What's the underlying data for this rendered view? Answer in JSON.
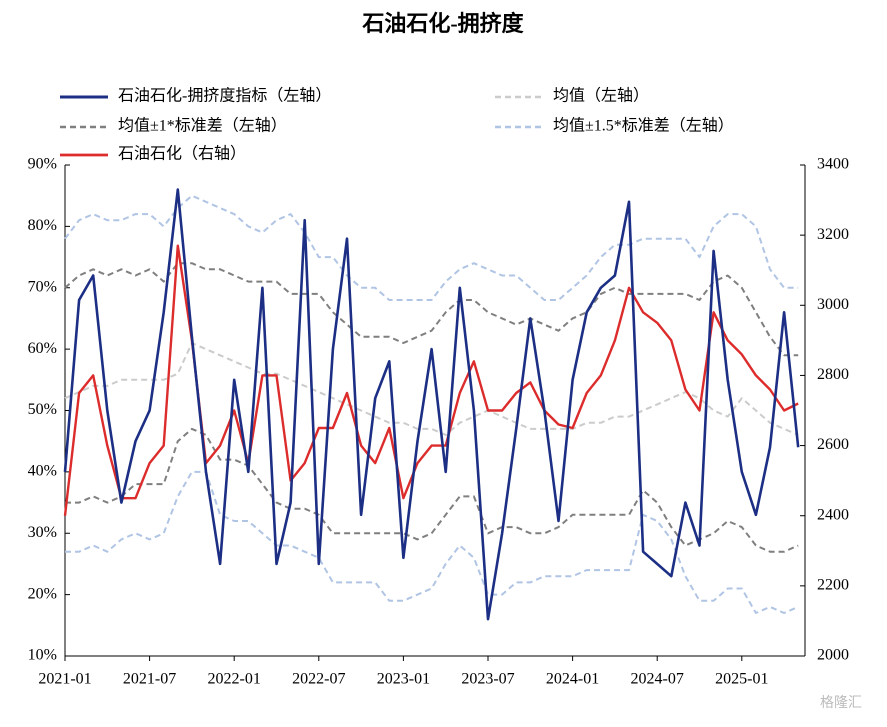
{
  "chart_data": {
    "type": "line",
    "title": "石油石化-拥挤度",
    "watermark": "格隆汇",
    "categories": [
      "2021-01",
      null,
      null,
      null,
      null,
      null,
      "2021-07",
      null,
      null,
      null,
      null,
      null,
      "2022-01",
      null,
      null,
      null,
      null,
      null,
      "2022-07",
      null,
      null,
      null,
      null,
      null,
      "2023-01",
      null,
      null,
      null,
      null,
      null,
      "2023-07",
      null,
      null,
      null,
      null,
      null,
      "2024-01",
      null,
      null,
      null,
      null,
      null,
      "2024-07",
      null,
      null,
      null,
      null,
      null,
      "2025-01",
      null,
      null,
      null,
      null
    ],
    "ylim": [
      10,
      90
    ],
    "yticks": [
      {
        "value": 10,
        "label": "10%"
      },
      {
        "value": 20,
        "label": "20%"
      },
      {
        "value": 30,
        "label": "30%"
      },
      {
        "value": 40,
        "label": "40%"
      },
      {
        "value": 50,
        "label": "50%"
      },
      {
        "value": 60,
        "label": "60%"
      },
      {
        "value": 70,
        "label": "70%"
      },
      {
        "value": 80,
        "label": "80%"
      },
      {
        "value": 90,
        "label": "90%"
      }
    ],
    "y2lim": [
      2000,
      3400
    ],
    "y2ticks": [
      2000,
      2200,
      2400,
      2600,
      2800,
      3000,
      3200,
      3400
    ],
    "series": [
      {
        "name": "石油石化-拥挤度指标（左轴）",
        "color": "#1c2f85",
        "width": 2.6,
        "values": [
          40,
          68,
          72,
          50,
          35,
          45,
          50,
          66,
          86,
          62,
          40,
          25,
          55,
          40,
          70,
          25,
          35,
          81,
          25,
          60,
          78,
          33,
          52,
          58,
          26,
          45,
          60,
          40,
          70,
          50,
          16,
          30,
          47,
          65,
          50,
          32,
          55,
          66,
          70,
          72,
          84,
          27,
          25,
          23,
          35,
          28,
          76,
          55,
          40,
          33,
          44,
          66,
          44
        ]
      },
      {
        "name": "均值（左轴）",
        "color": "#cbcbcb",
        "dash": "6 4",
        "width": 2,
        "values": [
          52,
          53,
          54,
          54,
          55,
          55,
          55,
          55,
          56,
          61,
          60,
          59,
          58,
          57,
          56,
          56,
          55,
          54,
          53,
          52,
          51,
          50,
          49,
          48,
          48,
          47,
          47,
          46,
          48,
          49,
          50,
          49,
          48,
          47,
          47,
          47,
          47,
          48,
          48,
          49,
          49,
          50,
          51,
          52,
          53,
          52,
          50,
          49,
          52,
          50,
          48,
          47,
          46
        ]
      },
      {
        "name": "均值±1*标准差（左轴）",
        "color": "#7f7f7f",
        "dash": "6 4",
        "width": 2,
        "upper": [
          70,
          72,
          73,
          72,
          73,
          72,
          73,
          71,
          74,
          74,
          73,
          73,
          72,
          71,
          71,
          71,
          69,
          69,
          69,
          66,
          64,
          62,
          62,
          62,
          61,
          62,
          63,
          66,
          68,
          68,
          66,
          65,
          64,
          65,
          64,
          63,
          65,
          66,
          69,
          70,
          69,
          69,
          69,
          69,
          69,
          68,
          71,
          72,
          70,
          66,
          62,
          59,
          59
        ],
        "lower": [
          35,
          35,
          36,
          35,
          36,
          38,
          38,
          38,
          45,
          47,
          46,
          42,
          42,
          41,
          38,
          35,
          34,
          34,
          33,
          30,
          30,
          30,
          30,
          30,
          30,
          29,
          30,
          33,
          36,
          36,
          30,
          31,
          31,
          30,
          30,
          31,
          33,
          33,
          33,
          33,
          33,
          37,
          35,
          31,
          28,
          29,
          30,
          32,
          31,
          28,
          27,
          27,
          28
        ]
      },
      {
        "name": "均值±1.5*标准差（左轴）",
        "color": "#b0c4e4",
        "dash": "6 4",
        "width": 2,
        "upper": [
          78,
          81,
          82,
          81,
          81,
          82,
          82,
          80,
          83,
          85,
          84,
          83,
          82,
          80,
          79,
          81,
          82,
          79,
          75,
          75,
          72,
          70,
          70,
          68,
          68,
          68,
          68,
          71,
          73,
          74,
          73,
          72,
          72,
          70,
          68,
          68,
          70,
          72,
          75,
          77,
          77,
          78,
          78,
          78,
          78,
          75,
          80,
          82,
          82,
          80,
          73,
          70,
          70
        ],
        "lower": [
          27,
          27,
          28,
          27,
          29,
          30,
          29,
          30,
          36,
          40,
          40,
          33,
          32,
          32,
          30,
          28,
          28,
          27,
          26,
          22,
          22,
          22,
          22,
          19,
          19,
          20,
          21,
          25,
          28,
          26,
          20,
          20,
          22,
          22,
          23,
          23,
          23,
          24,
          24,
          24,
          24,
          33,
          32,
          29,
          23,
          19,
          19,
          21,
          21,
          17,
          18,
          17,
          18
        ]
      },
      {
        "name": "石油石化（右轴）",
        "color": "#dc2c2c",
        "width": 2.4,
        "axis": "y2",
        "values": [
          2400,
          2750,
          2800,
          2600,
          2450,
          2450,
          2550,
          2600,
          3170,
          2900,
          2550,
          2600,
          2700,
          2550,
          2800,
          2800,
          2500,
          2550,
          2650,
          2650,
          2750,
          2600,
          2550,
          2650,
          2450,
          2550,
          2600,
          2600,
          2750,
          2840,
          2700,
          2700,
          2750,
          2780,
          2700,
          2660,
          2650,
          2750,
          2800,
          2900,
          3050,
          2980,
          2950,
          2900,
          2760,
          2700,
          2980,
          2900,
          2860,
          2800,
          2760,
          2700,
          2720
        ]
      }
    ]
  }
}
